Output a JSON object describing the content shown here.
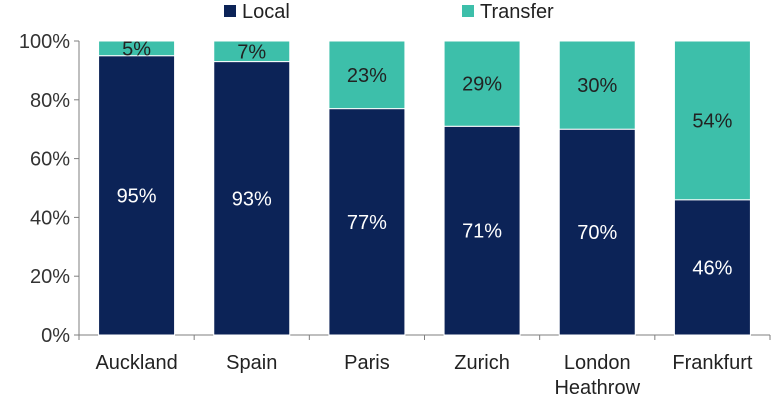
{
  "chart_data": {
    "type": "bar",
    "stacked": true,
    "percent": true,
    "categories": [
      "Auckland",
      "Spain",
      "Paris",
      "Zurich",
      "London Heathrow",
      "Frankfurt"
    ],
    "category_lines": [
      [
        "Auckland"
      ],
      [
        "Spain"
      ],
      [
        "Paris"
      ],
      [
        "Zurich"
      ],
      [
        "London",
        "Heathrow"
      ],
      [
        "Frankfurt"
      ]
    ],
    "series": [
      {
        "name": "Local",
        "color": "#0c2357",
        "label_color": "#ffffff",
        "values": [
          95,
          93,
          77,
          71,
          70,
          46
        ],
        "labels": [
          "95%",
          "93%",
          "77%",
          "71%",
          "70%",
          "46%"
        ]
      },
      {
        "name": "Transfer",
        "color": "#3dbfaa",
        "label_color": "#222222",
        "values": [
          5,
          7,
          23,
          29,
          30,
          54
        ],
        "labels": [
          "5%",
          "7%",
          "23%",
          "29%",
          "30%",
          "54%"
        ]
      }
    ],
    "y_ticks": [
      0,
      20,
      40,
      60,
      80,
      100
    ],
    "y_tick_labels": [
      "0%",
      "20%",
      "40%",
      "60%",
      "80%",
      "100%"
    ],
    "ylim": [
      0,
      100
    ],
    "grid": false,
    "legend_position": "top"
  }
}
